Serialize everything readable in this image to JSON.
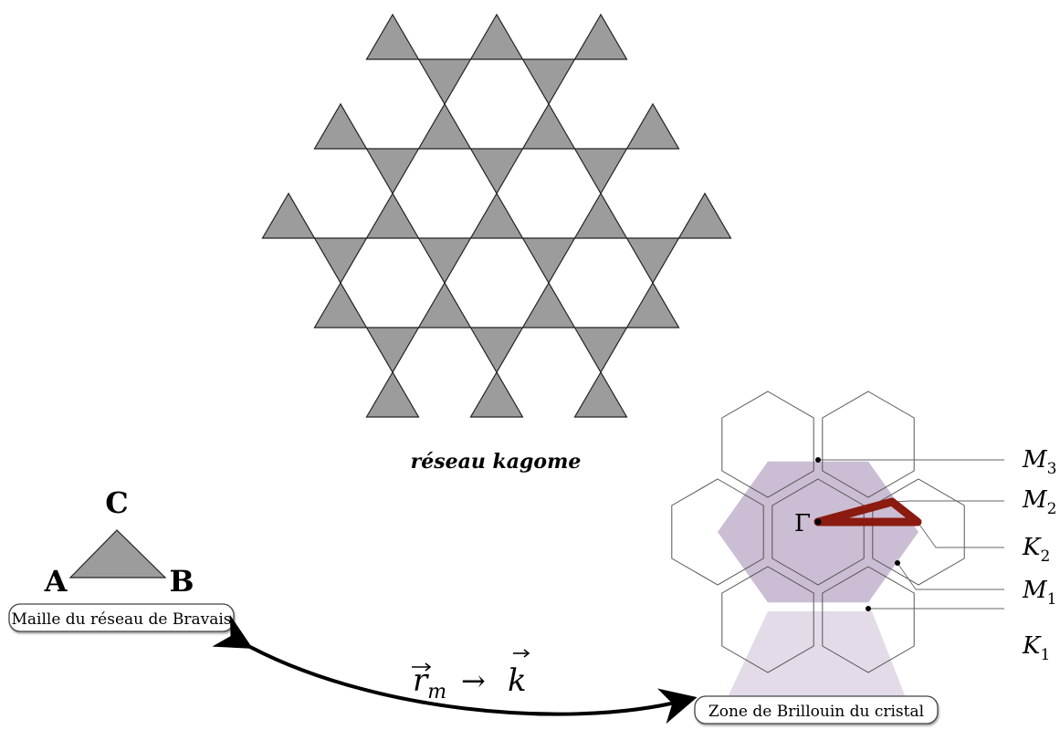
{
  "lattice": {
    "title": "réseau kagome"
  },
  "unit_cell": {
    "vertex_a": "A",
    "vertex_b": "B",
    "vertex_c": "C",
    "caption": "Maille du réseau de Bravais"
  },
  "brillouin": {
    "caption": "Zone de Brillouin du cristal",
    "gamma": "Γ",
    "points": [
      {
        "base": "M",
        "sub": "3"
      },
      {
        "base": "M",
        "sub": "2"
      },
      {
        "base": "K",
        "sub": "2"
      },
      {
        "base": "M",
        "sub": "1"
      },
      {
        "base": "K",
        "sub": "1"
      }
    ]
  },
  "transform": {
    "from_base": "r",
    "from_sub": "m",
    "arrow": "→",
    "to": "k"
  },
  "colors": {
    "triangle_fill": "#9c9c9c",
    "zone_fill": "#cbbdd3",
    "path_color": "#8b1a10",
    "stroke": "#222222"
  }
}
